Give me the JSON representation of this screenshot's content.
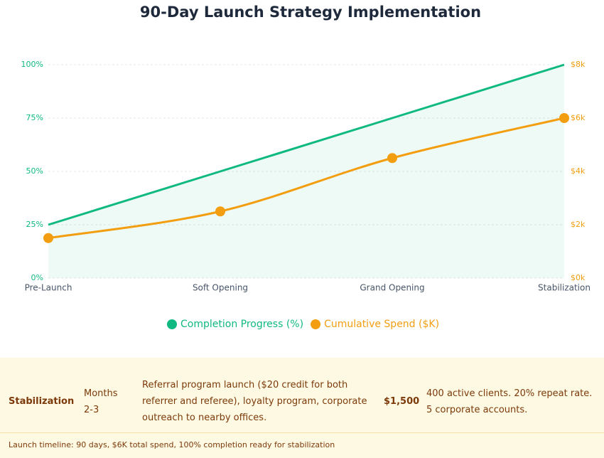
{
  "chart_data": {
    "type": "line",
    "title": "90-Day Launch Strategy Implementation",
    "categories": [
      "Pre-Launch",
      "Soft Opening",
      "Grand Opening",
      "Stabilization"
    ],
    "series": [
      {
        "name": "Completion Progress (%)",
        "color": "#10b981",
        "values": [
          25,
          50,
          75,
          100
        ],
        "axis": "y",
        "area": true
      },
      {
        "name": "Cumulative Spend ($K)",
        "color": "#f29e10",
        "values": [
          1.5,
          2.5,
          4.5,
          6
        ],
        "axis": "y2",
        "smooth": true,
        "markers": true
      }
    ],
    "ylim": [
      0,
      100
    ],
    "yticks": [
      {
        "value": 0,
        "label": "0%"
      },
      {
        "value": 25,
        "label": "25%"
      },
      {
        "value": 50,
        "label": "50%"
      },
      {
        "value": 75,
        "label": "75%"
      },
      {
        "value": 100,
        "label": "100%"
      }
    ],
    "y2lim": [
      0,
      8
    ],
    "y2ticks": [
      {
        "value": 0,
        "label": "$0k"
      },
      {
        "value": 2,
        "label": "$2k"
      },
      {
        "value": 4,
        "label": "$4k"
      },
      {
        "value": 6,
        "label": "$6k"
      },
      {
        "value": 8,
        "label": "$8k"
      }
    ],
    "grid": true,
    "legend": "bottom"
  },
  "table": {
    "rows": [
      [
        "Stabilization",
        "Months 2-3",
        "Referral program launch ($20 credit for both referrer and referee), loyalty program, corporate outreach to nearby offices.",
        "$1,500",
        "400 active clients. 20% repeat rate. 5 corporate accounts."
      ]
    ],
    "footnote": "Launch timeline: 90 days, $6K total spend, 100% completion ready for stabilization"
  }
}
